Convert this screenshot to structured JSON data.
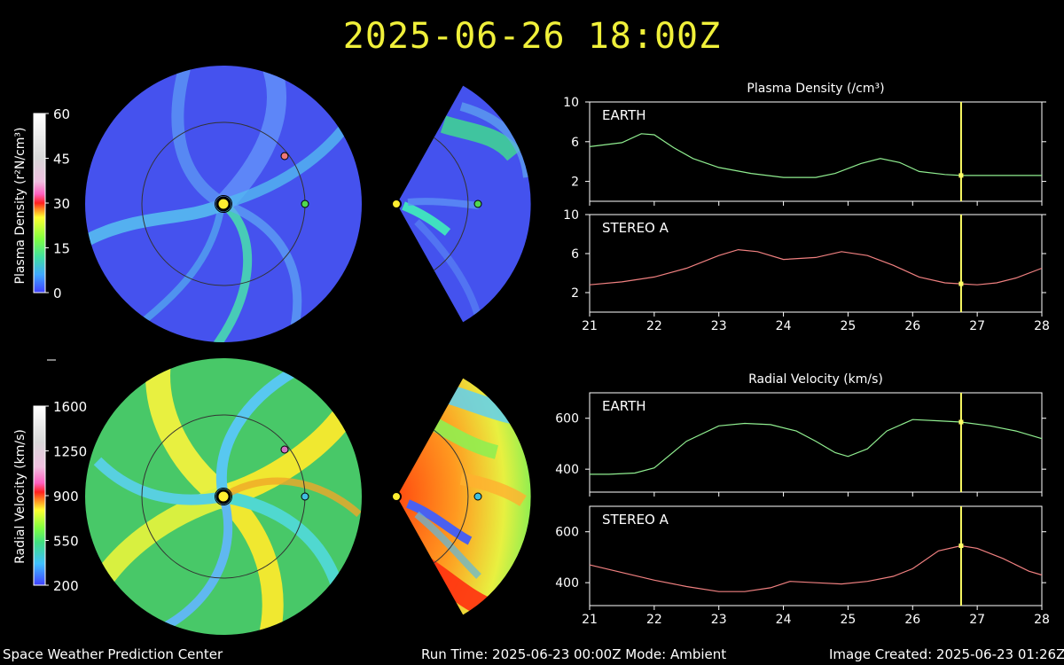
{
  "title": "2025-06-26 18:00Z",
  "footer": {
    "center": "Space Weather Prediction Center",
    "run": "Run Time: 2025-06-23 00:00Z  Mode: Ambient",
    "created": "Image Created: 2025-06-23 01:26Z"
  },
  "colorbars": {
    "density": {
      "label": "Plasma Density (r²N/cm³)",
      "ticks": [
        "60",
        "45",
        "30",
        "15",
        "0"
      ]
    },
    "velocity": {
      "label": "Radial Velocity (km/s)",
      "ticks": [
        "1600",
        "1250",
        "900",
        "550",
        "200"
      ]
    }
  },
  "colors": {
    "title": "#f0f03a",
    "earth": "#90ee90",
    "stereo_a": "#f08080",
    "marker": "#ffff66"
  },
  "chart_data": [
    {
      "type": "line",
      "title": "Plasma Density (/cm³)",
      "panel": "EARTH",
      "xlim": [
        21,
        28
      ],
      "ylim": [
        0,
        10
      ],
      "yticks": [
        2,
        6,
        10
      ],
      "xticks": [
        21,
        22,
        23,
        24,
        25,
        26,
        27,
        28
      ],
      "current_time": 26.75,
      "x": [
        21.0,
        21.5,
        21.8,
        22.0,
        22.3,
        22.6,
        23.0,
        23.5,
        24.0,
        24.5,
        24.8,
        25.2,
        25.5,
        25.8,
        26.1,
        26.5,
        26.75,
        27.0,
        27.5,
        28.0
      ],
      "values": [
        5.5,
        5.9,
        6.8,
        6.7,
        5.4,
        4.3,
        3.4,
        2.8,
        2.4,
        2.4,
        2.8,
        3.8,
        4.3,
        3.9,
        3.0,
        2.7,
        2.6,
        2.6,
        2.6,
        2.6
      ]
    },
    {
      "type": "line",
      "panel": "STEREO A",
      "xlim": [
        21,
        28
      ],
      "ylim": [
        0,
        10
      ],
      "yticks": [
        2,
        6,
        10
      ],
      "xticks": [
        21,
        22,
        23,
        24,
        25,
        26,
        27,
        28
      ],
      "current_time": 26.75,
      "x": [
        21.0,
        21.5,
        22.0,
        22.5,
        23.0,
        23.3,
        23.6,
        24.0,
        24.5,
        24.9,
        25.3,
        25.7,
        26.1,
        26.5,
        26.75,
        27.0,
        27.3,
        27.6,
        28.0
      ],
      "values": [
        2.8,
        3.1,
        3.6,
        4.5,
        5.8,
        6.4,
        6.2,
        5.4,
        5.6,
        6.2,
        5.8,
        4.8,
        3.6,
        3.0,
        2.9,
        2.8,
        3.0,
        3.5,
        4.5
      ]
    },
    {
      "type": "line",
      "title": "Radial Velocity (km/s)",
      "panel": "EARTH",
      "xlim": [
        21,
        28
      ],
      "ylim": [
        310,
        700
      ],
      "yticks": [
        400,
        600
      ],
      "xticks": [
        21,
        22,
        23,
        24,
        25,
        26,
        27,
        28
      ],
      "current_time": 26.75,
      "x": [
        21.0,
        21.3,
        21.7,
        22.0,
        22.5,
        23.0,
        23.4,
        23.8,
        24.2,
        24.5,
        24.8,
        25.0,
        25.3,
        25.6,
        26.0,
        26.4,
        26.75,
        27.2,
        27.6,
        28.0
      ],
      "values": [
        380,
        380,
        385,
        405,
        510,
        570,
        580,
        575,
        550,
        510,
        465,
        450,
        480,
        550,
        595,
        590,
        585,
        570,
        550,
        520
      ]
    },
    {
      "type": "line",
      "panel": "STEREO A",
      "xlim": [
        21,
        28
      ],
      "ylim": [
        310,
        700
      ],
      "yticks": [
        400,
        600
      ],
      "xticks": [
        21,
        22,
        23,
        24,
        25,
        26,
        27,
        28
      ],
      "current_time": 26.75,
      "x": [
        21.0,
        21.5,
        22.0,
        22.5,
        23.0,
        23.4,
        23.8,
        24.1,
        24.5,
        24.9,
        25.3,
        25.7,
        26.0,
        26.4,
        26.75,
        27.0,
        27.4,
        27.8,
        28.0
      ],
      "values": [
        470,
        440,
        410,
        385,
        365,
        365,
        380,
        405,
        400,
        395,
        405,
        425,
        455,
        525,
        545,
        535,
        495,
        445,
        430
      ]
    }
  ]
}
